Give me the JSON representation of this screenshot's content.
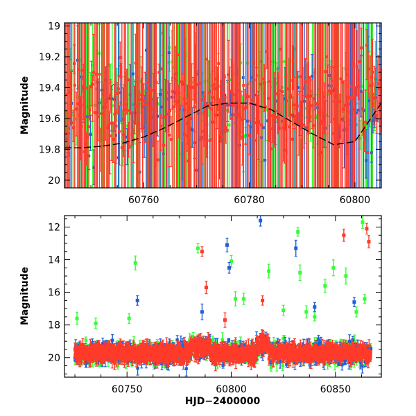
{
  "colors": {
    "green": "#33ff33",
    "blue": "#1f5fd6",
    "red": "#ff3b2a",
    "model": "#000000",
    "axis": "#000000"
  },
  "chart_data": [
    {
      "type": "scatter",
      "title": "",
      "xlabel": "",
      "ylabel": "Magnitude",
      "xlim": [
        60745,
        60805
      ],
      "ylim": [
        20.05,
        18.98
      ],
      "y_inverted": true,
      "grid": false,
      "xticks": [
        60760,
        60780,
        60800
      ],
      "xtick_labels": [
        "60760",
        "60780",
        "60800"
      ],
      "yticks": [
        19,
        19.2,
        19.4,
        19.6,
        19.8,
        20
      ],
      "ytick_labels": [
        "19",
        "19.2",
        "19.4",
        "19.6",
        "19.8",
        "20"
      ],
      "series": [
        {
          "color": "green",
          "style": "points-with-error-bars",
          "cadence_days": 0.35,
          "x_range": [
            60745,
            60805
          ],
          "mean": 19.45,
          "scatter": 0.35,
          "error_bar_span": [
            19.0,
            20.0
          ]
        },
        {
          "color": "blue",
          "style": "points-with-error-bars",
          "cadence_days": 0.45,
          "x_range": [
            60745,
            60805
          ],
          "mean": 19.55,
          "scatter": 0.3,
          "error_bar_span": [
            19.0,
            20.0
          ]
        },
        {
          "color": "red",
          "style": "points-with-error-bars",
          "cadence_days": 0.22,
          "x_range": [
            60745,
            60805
          ],
          "mean": 19.5,
          "scatter": 0.3,
          "error_bar_span": [
            19.0,
            20.0
          ]
        },
        {
          "color": "model",
          "style": "dashed-line",
          "x": [
            60745,
            60748,
            60752,
            60756,
            60760,
            60764,
            60768,
            60772,
            60776,
            60780,
            60784,
            60788,
            60792,
            60796,
            60800,
            60805
          ],
          "y": [
            19.79,
            19.79,
            19.78,
            19.76,
            19.72,
            19.66,
            19.59,
            19.52,
            19.5,
            19.5,
            19.54,
            19.62,
            19.7,
            19.77,
            19.75,
            19.5
          ]
        }
      ]
    },
    {
      "type": "scatter",
      "title": "",
      "xlabel": "HJD−2400000",
      "ylabel": "Magnitude",
      "xlim": [
        60720,
        60872
      ],
      "ylim": [
        21.2,
        11.3
      ],
      "y_inverted": true,
      "grid": false,
      "xticks": [
        60750,
        60800,
        60850
      ],
      "xtick_labels": [
        "60750",
        "60800",
        "60850"
      ],
      "yticks": [
        12,
        14,
        16,
        18,
        20
      ],
      "ytick_labels": [
        "12",
        "14",
        "16",
        "18",
        "20"
      ],
      "baseline": {
        "x_range": [
          60725,
          60867
        ],
        "mean": 19.75,
        "scatter": 0.55
      },
      "outliers": [
        {
          "color": "green",
          "points": [
            [
              60726,
              17.6
            ],
            [
              60735,
              17.9
            ],
            [
              60751,
              17.6
            ],
            [
              60754,
              14.2
            ],
            [
              60784,
              13.3
            ],
            [
              60800,
              14.1
            ],
            [
              60802,
              16.4
            ],
            [
              60806,
              16.4
            ],
            [
              60818,
              14.7
            ],
            [
              60825,
              17.1
            ],
            [
              60832,
              12.3
            ],
            [
              60833,
              14.8
            ],
            [
              60836,
              17.2
            ],
            [
              60840,
              17.5
            ],
            [
              60845,
              15.6
            ],
            [
              60849,
              14.5
            ],
            [
              60855,
              15.0
            ],
            [
              60860,
              17.2
            ],
            [
              60863,
              11.7
            ],
            [
              60864,
              16.4
            ]
          ]
        },
        {
          "color": "blue",
          "points": [
            [
              60755,
              16.5
            ],
            [
              60786,
              17.2
            ],
            [
              60798,
              13.1
            ],
            [
              60799,
              14.5
            ],
            [
              60814,
              11.6
            ],
            [
              60831,
              13.3
            ],
            [
              60840,
              16.9
            ],
            [
              60859,
              16.6
            ]
          ]
        },
        {
          "color": "red",
          "points": [
            [
              60786,
              13.5
            ],
            [
              60788,
              15.7
            ],
            [
              60797,
              17.7
            ],
            [
              60815,
              16.5
            ],
            [
              60854,
              12.5
            ],
            [
              60865,
              12.1
            ],
            [
              60866,
              12.9
            ]
          ]
        }
      ]
    }
  ]
}
